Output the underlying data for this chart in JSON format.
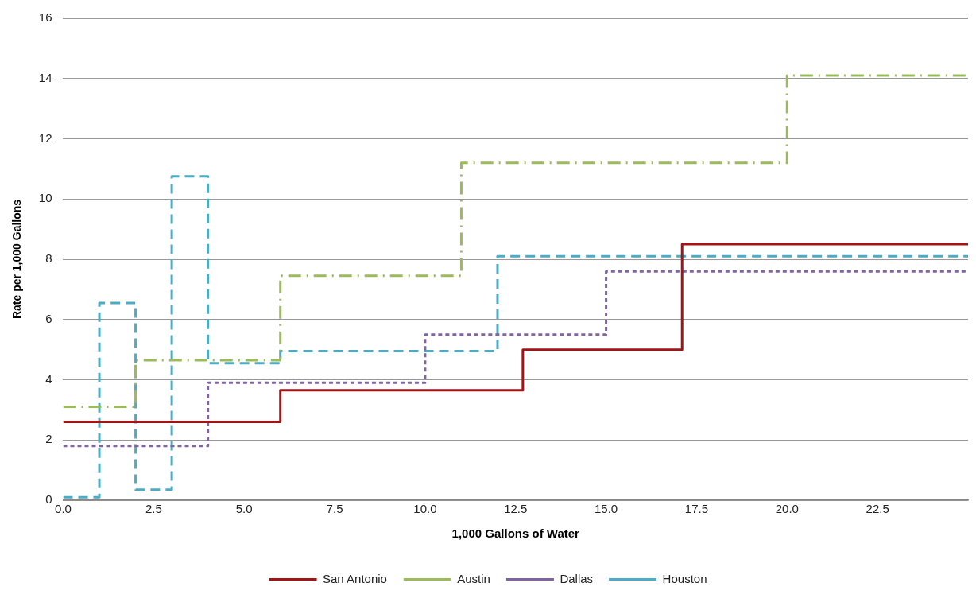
{
  "chart_data": {
    "type": "step",
    "xlabel": "1,000 Gallons of Water",
    "ylabel": "Rate per 1,000 Gallons",
    "xlim": [
      0,
      25
    ],
    "xticks": [
      {
        "value": 0,
        "label": "0.0"
      },
      2.5,
      {
        "value": 5,
        "label": "5.0"
      },
      7.5,
      {
        "value": 10,
        "label": "10.0"
      },
      12.5,
      {
        "value": 15,
        "label": "15.0"
      },
      17.5,
      {
        "value": 20,
        "label": "20.0"
      },
      22.5
    ],
    "ylim": [
      0,
      16
    ],
    "yticks": [
      0,
      2,
      4,
      6,
      8,
      10,
      12,
      14,
      16
    ],
    "grid": "y",
    "legend": "bottom",
    "marker": "none",
    "series": [
      {
        "name": "San Antonio",
        "color": "#a31515",
        "line_style": "solid",
        "x": [
          0,
          6,
          12.7,
          17.1,
          25
        ],
        "values": [
          2.6,
          3.65,
          5.0,
          8.5,
          8.5
        ]
      },
      {
        "name": "Austin",
        "color": "#9bbb59",
        "line_style": "dashdot",
        "x": [
          0,
          2,
          6,
          11,
          20,
          25
        ],
        "values": [
          3.1,
          4.65,
          7.45,
          11.2,
          14.1,
          14.1
        ]
      },
      {
        "name": "Dallas",
        "color": "#8064a2",
        "line_style": "dotted",
        "x": [
          0,
          4,
          10,
          15,
          25
        ],
        "values": [
          1.8,
          3.9,
          5.5,
          7.6,
          7.6
        ]
      },
      {
        "name": "Houston",
        "color": "#4bacc6",
        "line_style": "dashed",
        "x": [
          0,
          1,
          2,
          3,
          4,
          6,
          12,
          25
        ],
        "values": [
          0.1,
          6.55,
          0.35,
          10.75,
          4.55,
          4.95,
          8.1,
          8.1
        ]
      }
    ]
  }
}
